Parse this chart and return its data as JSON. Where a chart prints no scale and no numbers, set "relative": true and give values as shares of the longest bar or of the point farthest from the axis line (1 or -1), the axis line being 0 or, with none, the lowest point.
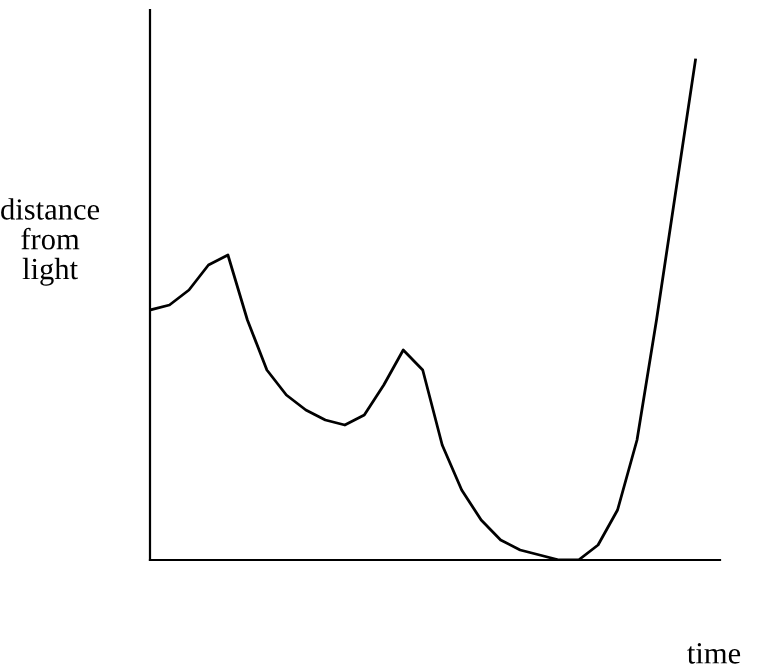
{
  "chart_data": {
    "type": "line",
    "relative": true,
    "xlabel": "time",
    "ylabel": "distance\nfrom\nlight",
    "color": "#000000",
    "marker": "none",
    "categories": [
      null,
      null,
      null,
      null,
      null,
      null,
      null,
      null,
      null,
      null,
      null,
      null,
      null,
      null,
      null,
      null,
      null,
      null,
      null,
      null,
      null,
      null,
      null,
      null,
      null,
      null,
      null,
      null,
      null
    ],
    "values": [
      0.5,
      0.51,
      0.54,
      0.59,
      0.61,
      0.48,
      0.38,
      0.33,
      0.3,
      0.28,
      0.27,
      0.29,
      0.35,
      0.42,
      0.38,
      0.23,
      0.14,
      0.08,
      0.04,
      0.02,
      0.01,
      0,
      0.0,
      0.03,
      0.1,
      0.24,
      0.48,
      0.74,
      1
    ]
  }
}
